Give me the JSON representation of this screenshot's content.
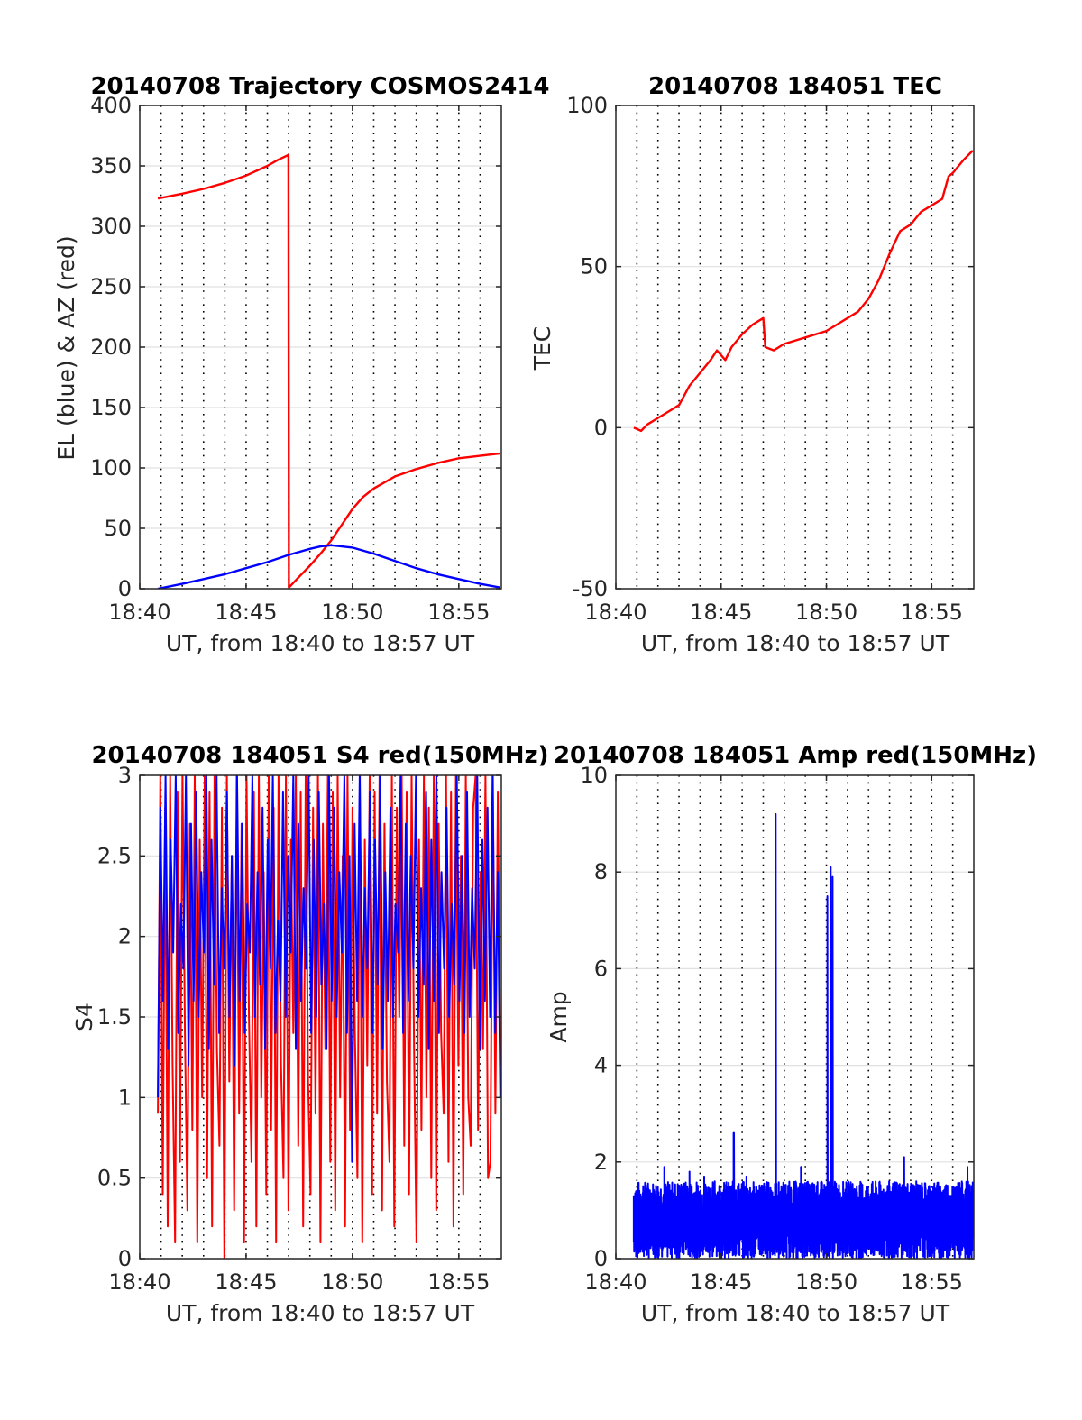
{
  "figure_date": "20140708",
  "chart_data": [
    {
      "id": "trajectory",
      "type": "line",
      "title": "20140708 Trajectory COSMOS2414",
      "xlabel": "UT, from 18:40 to 18:57 UT",
      "ylabel": "EL (blue) & AZ (red)",
      "x_unit": "minutes after 18:40 UT",
      "xlim": [
        0,
        17
      ],
      "ylim": [
        0,
        400
      ],
      "xticks": [
        0,
        5,
        10,
        15
      ],
      "xtick_labels": [
        "18:40",
        "18:45",
        "18:50",
        "18:55"
      ],
      "yticks": [
        0,
        50,
        100,
        150,
        200,
        250,
        300,
        350,
        400
      ],
      "ytick_labels": [
        "0",
        "50",
        "100",
        "150",
        "200",
        "250",
        "300",
        "350",
        "400"
      ],
      "grid": true,
      "series": [
        {
          "name": "AZ",
          "color": "#ff0000",
          "x": [
            0.85,
            2,
            3,
            4,
            5,
            6,
            6.5,
            6.99,
            7.01,
            7.5,
            8,
            8.5,
            9,
            9.5,
            10,
            10.5,
            11,
            12,
            13,
            14,
            15,
            16,
            16.95
          ],
          "y": [
            323,
            327,
            331,
            336,
            342,
            350,
            355,
            359,
            1,
            10,
            19,
            29,
            40,
            53,
            66,
            76,
            83,
            93,
            99,
            104,
            108,
            110,
            112
          ]
        },
        {
          "name": "EL",
          "color": "#0000ff",
          "x": [
            0.85,
            2,
            3,
            4,
            5,
            6,
            7,
            8,
            8.5,
            9,
            9.5,
            10,
            11,
            12,
            13,
            14,
            15,
            16,
            16.95
          ],
          "y": [
            0,
            4,
            8,
            12,
            17,
            22,
            28,
            33,
            35,
            36,
            35,
            34,
            29,
            23,
            17,
            12,
            8,
            4,
            1
          ]
        }
      ]
    },
    {
      "id": "tec",
      "type": "line",
      "title": "20140708 184051 TEC",
      "xlabel": "UT, from 18:40 to 18:57 UT",
      "ylabel": "TEC",
      "x_unit": "minutes after 18:40 UT",
      "xlim": [
        0,
        17
      ],
      "ylim": [
        -50,
        100
      ],
      "xticks": [
        0,
        5,
        10,
        15
      ],
      "xtick_labels": [
        "18:40",
        "18:45",
        "18:50",
        "18:55"
      ],
      "yticks": [
        -50,
        0,
        50,
        100
      ],
      "ytick_labels": [
        "-50",
        "0",
        "50",
        "100"
      ],
      "grid": true,
      "series": [
        {
          "name": "TEC",
          "color": "#ff0000",
          "x": [
            0.85,
            1.2,
            1.5,
            2,
            2.5,
            3,
            3.5,
            4,
            4.5,
            4.8,
            5.2,
            5.5,
            6,
            6.5,
            7.0,
            7.1,
            7.5,
            8,
            8.5,
            9,
            9.5,
            10,
            10.5,
            11,
            11.5,
            12,
            12.5,
            13,
            13.5,
            14,
            14.5,
            15,
            15.5,
            15.8,
            16,
            16.5,
            16.95
          ],
          "y": [
            0,
            -1,
            1,
            3,
            5,
            7,
            13,
            17,
            21,
            24,
            21,
            25,
            29,
            32,
            34,
            25,
            24,
            26,
            27,
            28,
            29,
            30,
            32,
            34,
            36,
            40,
            46,
            54,
            61,
            63,
            67,
            69,
            71,
            78,
            79,
            83,
            86
          ]
        }
      ]
    },
    {
      "id": "s4",
      "type": "line",
      "title": "20140708 184051 S4 red(150MHz)",
      "xlabel": "UT, from 18:40 to 18:57 UT",
      "ylabel": "S4",
      "x_unit": "minutes after 18:40 UT",
      "xlim": [
        0,
        17
      ],
      "ylim": [
        0,
        3
      ],
      "xticks": [
        0,
        5,
        10,
        15
      ],
      "xtick_labels": [
        "18:40",
        "18:45",
        "18:50",
        "18:55"
      ],
      "yticks": [
        0,
        0.5,
        1,
        1.5,
        2,
        2.5,
        3
      ],
      "ytick_labels": [
        "0",
        "0.5",
        "1",
        "1.5",
        "2",
        "2.5",
        "3"
      ],
      "grid": true,
      "series": [
        {
          "name": "S4 red",
          "color": "#ff0000",
          "x_start": 0.85,
          "x_end": 16.95,
          "y": [
            0.9,
            3.0,
            0.4,
            2.8,
            0.2,
            3.0,
            1.2,
            0.1,
            2.9,
            0.6,
            3.0,
            1.4,
            0.3,
            2.7,
            0.8,
            3.0,
            0.1,
            2.6,
            1.0,
            3.0,
            0.5,
            2.9,
            0.2,
            3.0,
            1.3,
            0.7,
            2.8,
            0.0,
            3.0,
            1.1,
            2.5,
            0.3,
            3.0,
            0.9,
            2.7,
            0.1,
            3.0,
            1.5,
            0.6,
            2.9,
            0.2,
            3.0,
            1.0,
            2.4,
            0.4,
            3.0,
            0.8,
            2.8,
            0.1,
            3.0,
            1.2,
            0.5,
            3.0,
            0.3,
            2.6,
            1.4,
            3.0,
            0.7,
            2.9,
            0.2,
            3.0,
            1.1,
            0.4,
            2.8,
            0.9,
            3.0,
            0.1,
            2.7,
            1.3,
            3.0,
            0.6,
            2.9,
            0.3,
            3.0,
            1.0,
            2.5,
            0.2,
            3.0,
            0.8,
            2.8,
            1.4,
            0.5,
            3.0,
            0.1,
            2.6,
            1.2,
            3.0,
            0.4,
            2.9,
            0.9,
            3.0,
            0.3,
            2.7,
            1.1,
            0.6,
            3.0,
            0.2,
            2.8,
            1.5,
            3.0,
            0.7,
            2.9,
            0.4,
            3.0,
            1.3,
            0.1,
            2.6,
            0.8,
            3.0,
            1.0,
            2.8,
            0.5,
            3.0,
            0.3,
            2.7,
            1.4,
            0.9,
            3.0,
            0.6,
            2.9,
            0.2,
            3.0,
            1.2,
            2.5,
            0.4,
            3.0,
            1.0,
            0.7,
            2.8,
            3.0,
            0.8,
            2.4,
            1.3,
            3.0,
            0.5,
            0.6,
            3.0,
            0.9,
            2.9,
            1.2
          ]
        },
        {
          "name": "S4 blue",
          "color": "#0000ff",
          "x_start": 0.85,
          "x_end": 16.95,
          "y": [
            1.0,
            2.8,
            1.6,
            3.0,
            1.3,
            2.6,
            1.9,
            3.0,
            1.4,
            2.2,
            1.8,
            3.0,
            1.2,
            2.7,
            1.6,
            2.9,
            1.5,
            2.4,
            1.9,
            3.0,
            1.3,
            2.6,
            1.7,
            3.0,
            1.4,
            2.3,
            1.8,
            2.9,
            1.5,
            2.5,
            1.2,
            3.0,
            1.6,
            2.7,
            1.4,
            2.2,
            1.9,
            3.0,
            1.5,
            2.4,
            1.7,
            2.8,
            1.3,
            2.6,
            1.8,
            3.0,
            1.4,
            2.1,
            1.6,
            2.9,
            1.5,
            2.5,
            1.9,
            3.0,
            1.3,
            2.7,
            1.6,
            2.3,
            1.8,
            3.0,
            1.4,
            2.6,
            1.5,
            2.9,
            1.7,
            2.2,
            1.3,
            3.0,
            1.6,
            2.8,
            1.5,
            2.4,
            1.9,
            3.0,
            1.4,
            2.5,
            0.6,
            2.7,
            1.6,
            3.0,
            1.5,
            2.3,
            1.8,
            2.9,
            1.4,
            2.6,
            1.7,
            3.0,
            1.3,
            2.4,
            1.6,
            2.8,
            1.5,
            2.2,
            1.9,
            3.0,
            1.4,
            2.7,
            1.6,
            2.5,
            1.8,
            3.0,
            1.5,
            2.3,
            1.7,
            2.9,
            1.3,
            2.6,
            1.6,
            3.0,
            1.4,
            2.4,
            1.8,
            2.8,
            1.5,
            2.2,
            1.7,
            3.0,
            1.6,
            2.5,
            1.4,
            2.9,
            1.5,
            2.3,
            1.8,
            3.0,
            1.3,
            2.6,
            1.6,
            2.8,
            1.5,
            3.0,
            1.4,
            2.4,
            1.0
          ]
        }
      ]
    },
    {
      "id": "amp",
      "type": "line",
      "title": "20140708 184051 Amp red(150MHz)",
      "xlabel": "UT, from 18:40 to 18:57 UT",
      "ylabel": "Amp",
      "x_unit": "minutes after 18:40 UT",
      "xlim": [
        0,
        17
      ],
      "ylim": [
        0,
        10
      ],
      "xticks": [
        0,
        5,
        10,
        15
      ],
      "xtick_labels": [
        "18:40",
        "18:45",
        "18:50",
        "18:55"
      ],
      "yticks": [
        0,
        2,
        4,
        6,
        8,
        10
      ],
      "ytick_labels": [
        "0",
        "2",
        "4",
        "6",
        "8",
        "10"
      ],
      "grid": true,
      "series": [
        {
          "name": "Amp",
          "color": "#0000ff",
          "x_start": 0.85,
          "x_end": 16.95,
          "noise_envelope": [
            1.0,
            1.6
          ],
          "spikes": [
            {
              "x": 1.3,
              "y": 1.5
            },
            {
              "x": 2.3,
              "y": 1.9
            },
            {
              "x": 3.5,
              "y": 1.8
            },
            {
              "x": 4.2,
              "y": 1.7
            },
            {
              "x": 4.7,
              "y": 1.6
            },
            {
              "x": 5.6,
              "y": 2.6
            },
            {
              "x": 6.2,
              "y": 1.7
            },
            {
              "x": 7.6,
              "y": 9.2
            },
            {
              "x": 8.8,
              "y": 1.9
            },
            {
              "x": 10.05,
              "y": 7.5
            },
            {
              "x": 10.2,
              "y": 8.1
            },
            {
              "x": 10.3,
              "y": 7.9
            },
            {
              "x": 13.7,
              "y": 2.1
            },
            {
              "x": 16.7,
              "y": 1.9
            }
          ]
        }
      ]
    }
  ]
}
